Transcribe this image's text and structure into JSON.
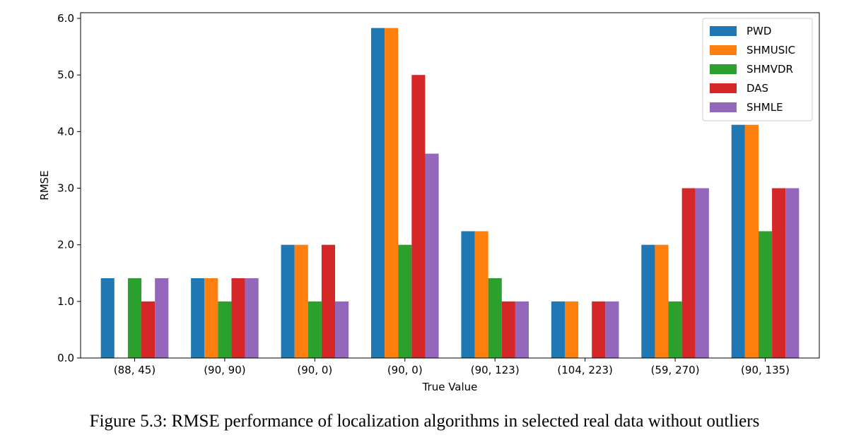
{
  "figure": {
    "caption": "Figure 5.3: RMSE performance of localization algorithms in selected real data without outliers"
  },
  "chart_data": {
    "type": "bar",
    "title": "",
    "xlabel": "True Value",
    "ylabel": "RMSE",
    "ylim": [
      0,
      6.1
    ],
    "yticks": [
      0.0,
      1.0,
      2.0,
      3.0,
      4.0,
      5.0,
      6.0
    ],
    "ytick_labels": [
      "0.0",
      "1.0",
      "2.0",
      "3.0",
      "4.0",
      "5.0",
      "6.0"
    ],
    "categories": [
      "(88, 45)",
      "(90, 90)",
      "(90, 0)",
      "(90, 0)",
      "(90, 123)",
      "(104, 223)",
      "(59, 270)",
      "(90, 135)"
    ],
    "series": [
      {
        "name": "PWD",
        "color": "#1f77b4",
        "values": [
          1.41,
          1.41,
          2.0,
          5.83,
          2.24,
          1.0,
          2.0,
          4.12
        ]
      },
      {
        "name": "SHMUSIC",
        "color": "#ff7f0e",
        "values": [
          0,
          1.41,
          2.0,
          5.83,
          2.24,
          1.0,
          2.0,
          4.12
        ]
      },
      {
        "name": "SHMVDR",
        "color": "#2ca02c",
        "values": [
          1.41,
          1.0,
          1.0,
          2.0,
          1.41,
          0,
          1.0,
          2.24
        ]
      },
      {
        "name": "DAS",
        "color": "#d62728",
        "values": [
          1.0,
          1.41,
          2.0,
          5.0,
          1.0,
          1.0,
          3.0,
          3.0
        ]
      },
      {
        "name": "SHMLE",
        "color": "#9467bd",
        "values": [
          1.41,
          1.41,
          1.0,
          3.61,
          1.0,
          1.0,
          3.0,
          3.0
        ]
      }
    ],
    "legend": "top-right",
    "grid": false
  }
}
